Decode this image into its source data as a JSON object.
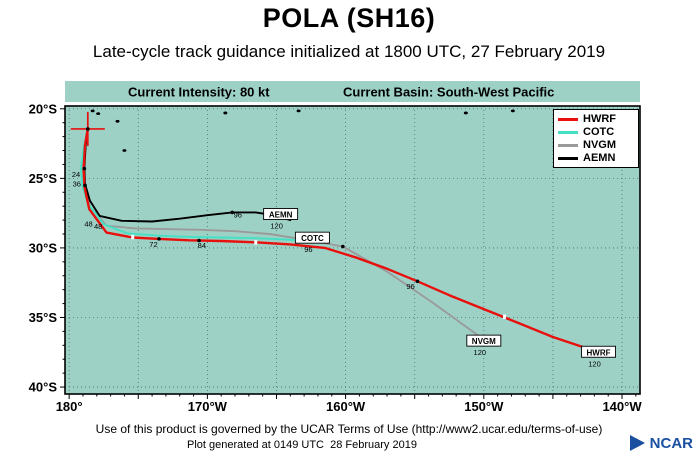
{
  "page": {
    "title": "POLA (SH16)",
    "subtitle": "Late-cycle track guidance initialized at 1800 UTC, 27 February 2019"
  },
  "info_bar": {
    "intensity_label": "Current Intensity: 80 kt",
    "basin_label": "Current Basin: South-West Pacific"
  },
  "footer": {
    "terms": "Use of this product is governed by the UCAR Terms of Use (http://www2.ucar.edu/terms-of-use)",
    "generated": "Plot generated at 0149 UTC  28 February 2019",
    "logo_text": "NCAR"
  },
  "colors": {
    "plot_bg": "#9ed1c6",
    "band_bg": "#9ed1c6",
    "hwrf": "#e8100c",
    "cotc": "#45e0c3",
    "nvgm": "#9a9a9a",
    "aemn": "#000000",
    "grid": "#48706a",
    "logo_blue": "#1b4fa0"
  },
  "chart_data": {
    "type": "line",
    "title": "POLA (SH16) late-cycle track guidance, initialized 1800 UTC 27 February 2019",
    "units": {
      "x": "degrees longitude west",
      "y": "degrees latitude south"
    },
    "x_axis": {
      "range_deg_w": [
        180.3,
        138.7
      ],
      "grid_deg": 5,
      "ticks": [
        {
          "deg_w": 180,
          "label": "180°"
        },
        {
          "deg_w": 170,
          "label": "170°W"
        },
        {
          "deg_w": 160,
          "label": "160°W"
        },
        {
          "deg_w": 150,
          "label": "150°W"
        },
        {
          "deg_w": 140,
          "label": "140°W"
        }
      ]
    },
    "y_axis": {
      "range_deg_s": [
        19.8,
        40.5
      ],
      "grid_deg": 5,
      "ticks": [
        {
          "deg_s": 20,
          "label": "20°S"
        },
        {
          "deg_s": 25,
          "label": "25°S"
        },
        {
          "deg_s": 30,
          "label": "30°S"
        },
        {
          "deg_s": 35,
          "label": "35°S"
        },
        {
          "deg_s": 40,
          "label": "40°S"
        }
      ]
    },
    "legend": [
      "HWRF",
      "COTC",
      "NVGM",
      "AEMN"
    ],
    "start": {
      "lon_w": 178.65,
      "lat_s": 21.45
    },
    "series": [
      {
        "name": "NVGM",
        "color_key": "nvgm",
        "end_hour": 120,
        "points": [
          [
            178.65,
            21.45
          ],
          [
            178.85,
            22.7
          ],
          [
            179.05,
            24.4
          ],
          [
            178.95,
            25.6
          ],
          [
            178.5,
            27.0
          ],
          [
            177.3,
            28.4
          ],
          [
            175.2,
            28.6
          ],
          [
            173.0,
            28.65
          ],
          [
            170.5,
            28.7
          ],
          [
            168.0,
            28.8
          ],
          [
            165.5,
            29.0
          ],
          [
            163.0,
            29.4
          ],
          [
            160.2,
            29.9
          ],
          [
            157.0,
            31.7
          ],
          [
            153.6,
            34.0
          ],
          [
            150.4,
            36.3
          ]
        ],
        "end_label": {
          "text": "NVGM",
          "hour": "120",
          "lon_w": 150.0,
          "lat_s": 36.7
        }
      },
      {
        "name": "AEMN",
        "color_key": "aemn",
        "end_hour": 120,
        "points": [
          [
            178.65,
            21.45
          ],
          [
            178.8,
            22.6
          ],
          [
            178.9,
            24.2
          ],
          [
            178.85,
            25.4
          ],
          [
            178.5,
            26.6
          ],
          [
            177.8,
            27.7
          ],
          [
            176.2,
            28.05
          ],
          [
            174.0,
            28.1
          ],
          [
            172.0,
            27.9
          ],
          [
            170.0,
            27.65
          ],
          [
            168.2,
            27.45
          ],
          [
            166.5,
            27.45
          ],
          [
            165.2,
            27.65
          ],
          [
            164.0,
            28.0
          ]
        ],
        "end_label": {
          "text": "AEMN",
          "hour": "120",
          "lon_w": 164.7,
          "lat_s": 27.6
        }
      },
      {
        "name": "COTC",
        "color_key": "cotc",
        "end_hour": 96,
        "points": [
          [
            178.65,
            21.45
          ],
          [
            178.95,
            22.8
          ],
          [
            179.15,
            24.3
          ],
          [
            179.05,
            25.5
          ],
          [
            178.65,
            26.8
          ],
          [
            177.5,
            28.3
          ],
          [
            175.8,
            28.95
          ],
          [
            173.8,
            29.1
          ],
          [
            171.5,
            29.2
          ],
          [
            169.0,
            29.25
          ],
          [
            166.5,
            29.3
          ],
          [
            164.3,
            29.4
          ],
          [
            162.3,
            29.5
          ]
        ],
        "end_label": {
          "text": "COTC",
          "hour": "96",
          "lon_w": 162.4,
          "lat_s": 29.3
        }
      },
      {
        "name": "HWRF",
        "color_key": "hwrf",
        "end_hour": 120,
        "points": [
          [
            178.65,
            21.45
          ],
          [
            178.85,
            22.6
          ],
          [
            178.95,
            24.3
          ],
          [
            178.9,
            25.6
          ],
          [
            178.55,
            27.2
          ],
          [
            177.3,
            28.9
          ],
          [
            175.4,
            29.25
          ],
          [
            173.5,
            29.35
          ],
          [
            171.3,
            29.45
          ],
          [
            169.0,
            29.5
          ],
          [
            166.5,
            29.6
          ],
          [
            164.0,
            29.75
          ],
          [
            161.5,
            30.0
          ],
          [
            159.2,
            30.7
          ],
          [
            157.0,
            31.5
          ],
          [
            154.8,
            32.4
          ],
          [
            152.5,
            33.4
          ],
          [
            150.0,
            34.4
          ],
          [
            147.5,
            35.4
          ],
          [
            145.0,
            36.4
          ],
          [
            142.0,
            37.4
          ]
        ],
        "end_label": {
          "text": "HWRF",
          "hour": "120",
          "lon_w": 141.7,
          "lat_s": 37.5
        }
      }
    ],
    "hour_labels": [
      {
        "text": "24",
        "lon_w": 179.5,
        "lat_s": 24.9
      },
      {
        "text": "36",
        "lon_w": 179.45,
        "lat_s": 25.6
      },
      {
        "text": "48",
        "lon_w": 178.6,
        "lat_s": 28.45
      },
      {
        "text": "48",
        "lon_w": 177.9,
        "lat_s": 28.65
      },
      {
        "text": "72",
        "lon_w": 173.9,
        "lat_s": 29.95
      },
      {
        "text": "84",
        "lon_w": 170.4,
        "lat_s": 30.0
      },
      {
        "text": "96",
        "lon_w": 167.8,
        "lat_s": 27.8
      },
      {
        "text": "96",
        "lon_w": 155.3,
        "lat_s": 32.95
      }
    ],
    "point_markers_black": [
      [
        154.8,
        32.4
      ],
      [
        173.5,
        29.35
      ],
      [
        170.6,
        29.47
      ],
      [
        168.2,
        27.45
      ],
      [
        178.9,
        24.3
      ],
      [
        178.85,
        25.5
      ],
      [
        160.2,
        29.9
      ]
    ],
    "white_ticks_on_hwrf": [
      [
        175.4,
        29.22
      ],
      [
        166.5,
        29.6
      ],
      [
        148.5,
        34.95
      ]
    ],
    "islands": [
      [
        178.3,
        20.15
      ],
      [
        177.9,
        20.35
      ],
      [
        176.5,
        20.9
      ],
      [
        176.0,
        23.0
      ],
      [
        168.7,
        20.3
      ],
      [
        163.4,
        20.15
      ],
      [
        151.3,
        20.3
      ],
      [
        147.9,
        20.15
      ]
    ]
  }
}
